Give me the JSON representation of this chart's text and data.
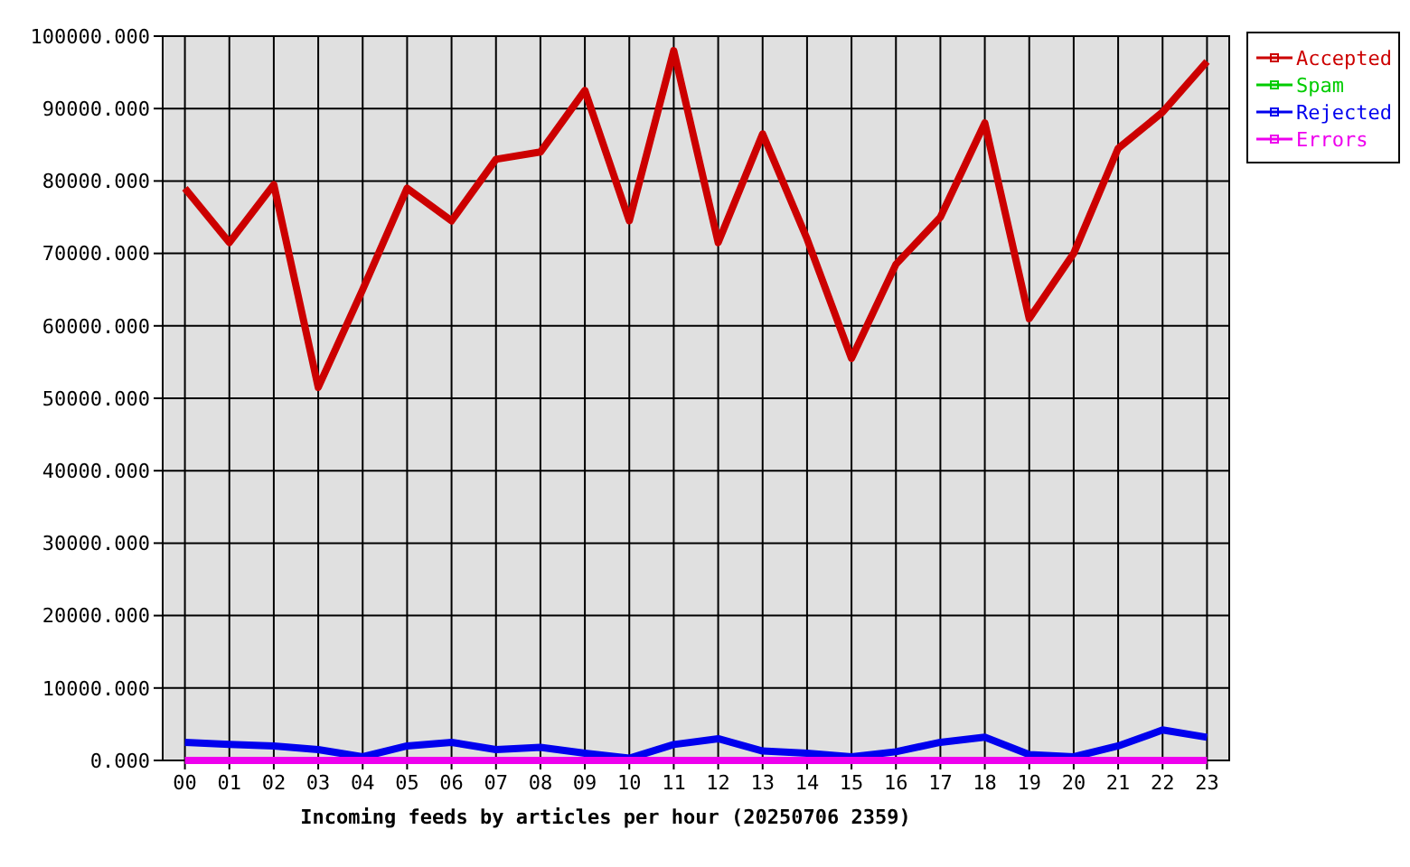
{
  "chart_data": {
    "type": "line",
    "xlabel": "Incoming feeds by articles per hour (20250706 2359)",
    "categories": [
      "00",
      "01",
      "02",
      "03",
      "04",
      "05",
      "06",
      "07",
      "08",
      "09",
      "10",
      "11",
      "12",
      "13",
      "14",
      "15",
      "16",
      "17",
      "18",
      "19",
      "20",
      "21",
      "22",
      "23"
    ],
    "series": [
      {
        "name": "Accepted",
        "color": "#cc0000",
        "values": [
          79000,
          71500,
          79500,
          51500,
          65000,
          79000,
          74500,
          83000,
          84000,
          92500,
          74500,
          98000,
          71500,
          86500,
          72000,
          55500,
          68500,
          75000,
          88000,
          61000,
          70000,
          84500,
          89500,
          96500
        ]
      },
      {
        "name": "Spam",
        "color": "#00cc00",
        "values": [
          null,
          null,
          null,
          null,
          null,
          null,
          null,
          null,
          null,
          null,
          null,
          null,
          null,
          null,
          null,
          null,
          null,
          null,
          null,
          null,
          null,
          null,
          null,
          null
        ]
      },
      {
        "name": "Rejected",
        "color": "#0000ee",
        "values": [
          2500,
          2200,
          2000,
          1500,
          500,
          2000,
          2500,
          1500,
          1800,
          1000,
          300,
          2200,
          3000,
          1300,
          1000,
          500,
          1200,
          2500,
          3200,
          800,
          500,
          2000,
          4200,
          3200
        ]
      },
      {
        "name": "Errors",
        "color": "#ee00ee",
        "values": [
          0,
          0,
          0,
          0,
          0,
          0,
          0,
          0,
          0,
          0,
          0,
          0,
          0,
          0,
          0,
          0,
          0,
          0,
          0,
          0,
          0,
          0,
          0,
          0
        ]
      }
    ],
    "ylim": [
      0,
      100000
    ],
    "yticks": [
      {
        "value": 0,
        "label": "0.000"
      },
      {
        "value": 10000,
        "label": "10000.000"
      },
      {
        "value": 20000,
        "label": "20000.000"
      },
      {
        "value": 30000,
        "label": "30000.000"
      },
      {
        "value": 40000,
        "label": "40000.000"
      },
      {
        "value": 50000,
        "label": "50000.000"
      },
      {
        "value": 60000,
        "label": "60000.000"
      },
      {
        "value": 70000,
        "label": "70000.000"
      },
      {
        "value": 80000,
        "label": "80000.000"
      },
      {
        "value": 90000,
        "label": "90000.000"
      },
      {
        "value": 100000,
        "label": "100000.000"
      }
    ],
    "grid": true,
    "legend": "top right",
    "marker": "none"
  }
}
